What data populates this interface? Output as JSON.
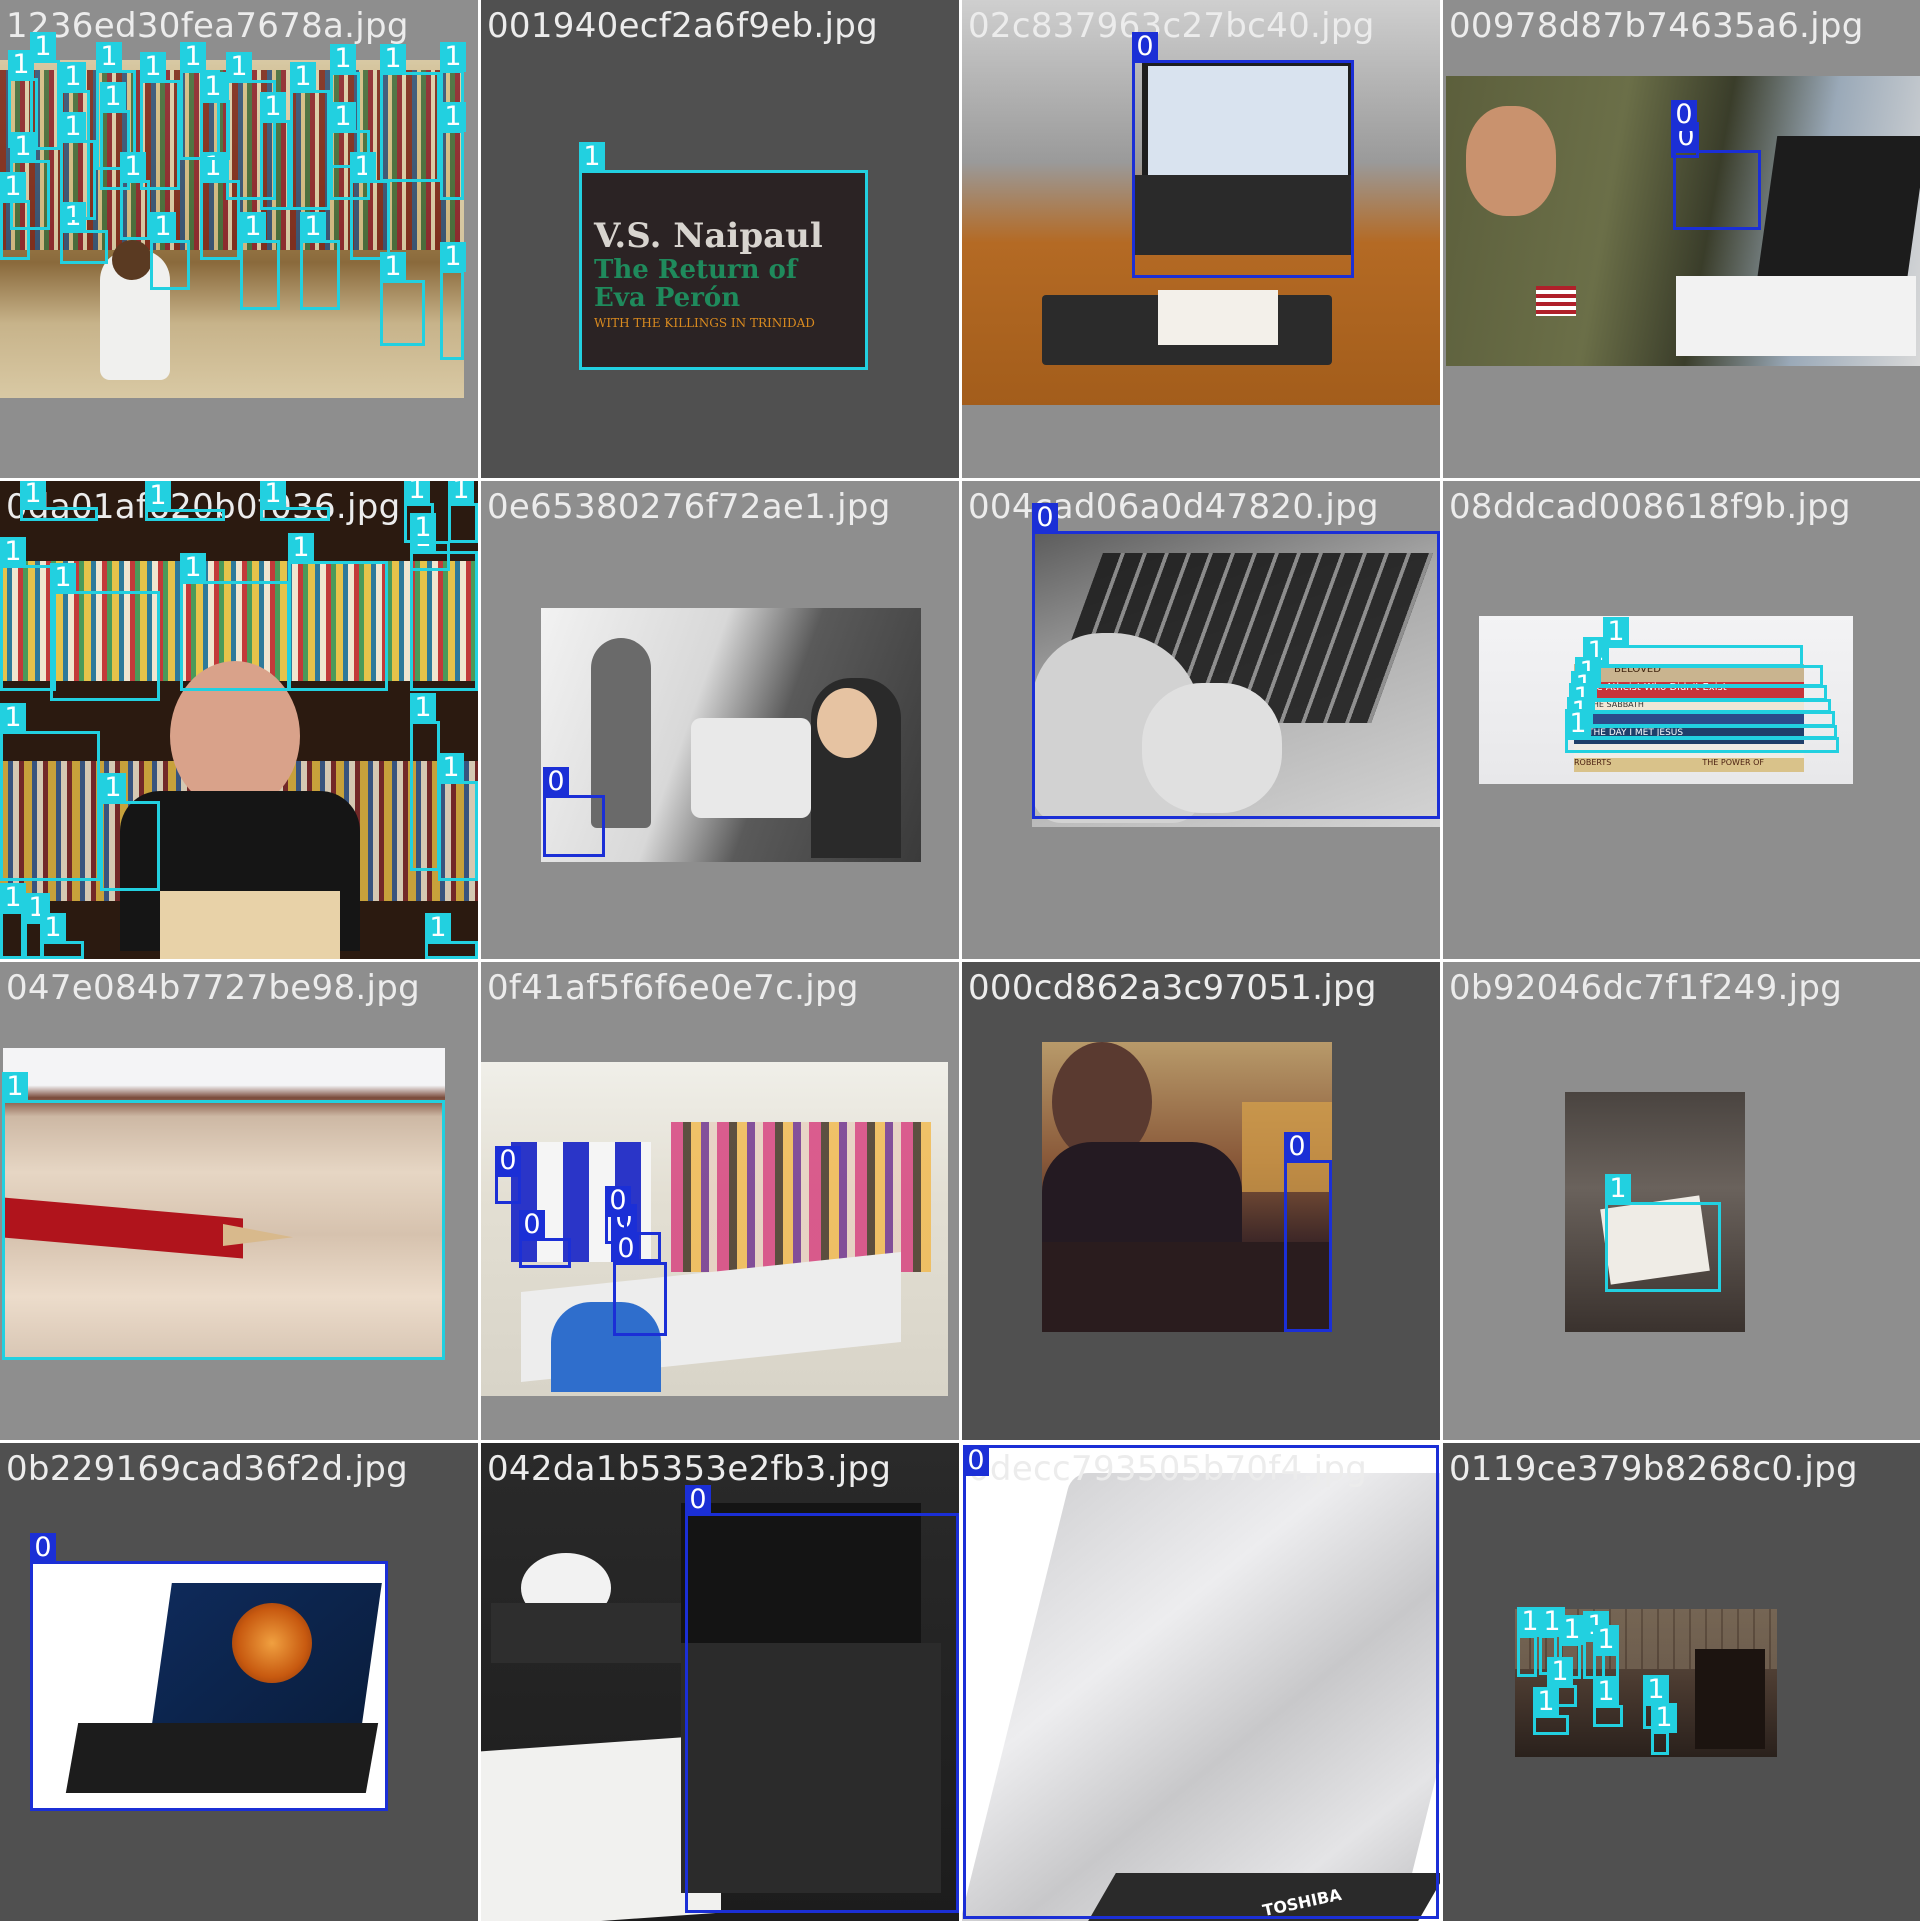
{
  "colors": {
    "class_0": "#1b2fd6",
    "class_1": "#22d0e0",
    "tile_bg_light": "#8e8e8e",
    "tile_bg_dark": "#505050"
  },
  "tiles": [
    {
      "file": "1236ed30fea7678a.jpg",
      "labels": [
        "1",
        "1",
        "1",
        "1",
        "1",
        "1",
        "1",
        "1",
        "1",
        "1",
        "1",
        "1",
        "1",
        "1",
        "1",
        "1",
        "1",
        "1",
        "1",
        "1",
        "1",
        "1",
        "1",
        "1",
        "1",
        "1",
        "1",
        "1"
      ]
    },
    {
      "file": "001940ecf2a6f9eb.jpg",
      "labels": [
        "1"
      ]
    },
    {
      "file": "02c837963c27bc40.jpg",
      "labels": [
        "0"
      ]
    },
    {
      "file": "00978d87b74635a6.jpg",
      "labels": [
        "0",
        "0"
      ]
    },
    {
      "file": "0da01af620b0f036.jpg",
      "labels": [
        "1",
        "1",
        "1",
        "1",
        "1",
        "1",
        "1",
        "1",
        "1",
        "1",
        "1",
        "1",
        "1",
        "1",
        "1",
        "1",
        "1",
        "1",
        "1"
      ]
    },
    {
      "file": "0e65380276f72ae1.jpg",
      "labels": [
        "0"
      ]
    },
    {
      "file": "004cad06a0d47820.jpg",
      "labels": [
        "0"
      ]
    },
    {
      "file": "08ddcad008618f9b.jpg",
      "labels": [
        "1",
        "1",
        "1",
        "1",
        "1",
        "1",
        "1"
      ]
    },
    {
      "file": "047e084b7727be98.jpg",
      "labels": [
        "1"
      ]
    },
    {
      "file": "0f41af5f6f6e0e7c.jpg",
      "labels": [
        "0",
        "0",
        "0",
        "0",
        "0"
      ]
    },
    {
      "file": "000cd862a3c97051.jpg",
      "labels": [
        "0"
      ]
    },
    {
      "file": "0b92046dc7f1f249.jpg",
      "labels": [
        "1"
      ]
    },
    {
      "file": "0b229169cad36f2d.jpg",
      "labels": [
        "0"
      ]
    },
    {
      "file": "042da1b5353e2fb3.jpg",
      "labels": [
        "0"
      ]
    },
    {
      "file": "0decc793505b70f4.jpg",
      "labels": [
        "0"
      ]
    },
    {
      "file": "0119ce379b8268c0.jpg",
      "labels": [
        "1",
        "1",
        "1",
        "1",
        "1",
        "1",
        "1",
        "1",
        "1",
        "1"
      ]
    }
  ],
  "text_on_photos": {
    "book_cover": {
      "author": "V.S. Naipaul",
      "title": "The Return of Eva Perón",
      "subtitle": "WITH THE KILLINGS IN TRINIDAD"
    },
    "book_spines": [
      "BELOVED",
      "The Atheist Who Didn't Exist",
      "THE SABBATH",
      "THE DAY I MET JESUS",
      "ROBERTS",
      "THE POWER OF"
    ],
    "laptop_brand": "TOSHIBA"
  }
}
